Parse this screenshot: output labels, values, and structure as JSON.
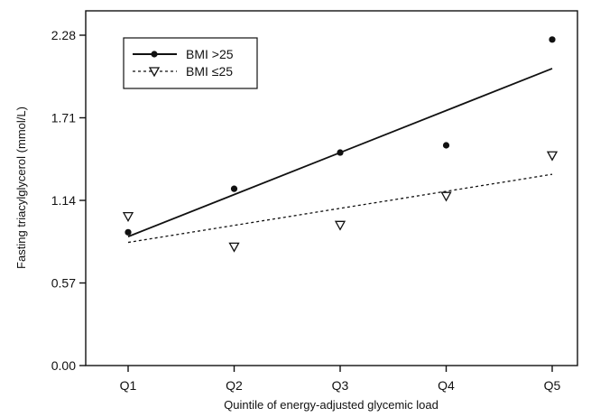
{
  "chart_data": {
    "type": "scatter",
    "categories": [
      "Q1",
      "Q2",
      "Q3",
      "Q4",
      "Q5"
    ],
    "xlabel": "Quintile of energy-adjusted glycemic load",
    "ylabel": "Fasting triacylglycerol (mmol/L)",
    "yticks": [
      "0.00",
      "0.57",
      "1.14",
      "1.71",
      "2.28"
    ],
    "ylim": [
      0,
      2.28
    ],
    "grid": false,
    "legend_position": "top-left",
    "series": [
      {
        "name": "BMI >25",
        "marker": "filled-circle",
        "line_style": "solid",
        "values": [
          0.92,
          1.22,
          1.47,
          1.52,
          2.25
        ],
        "fit_line": [
          0.89,
          2.05
        ]
      },
      {
        "name": "BMI ≤25",
        "marker": "open-triangle-down",
        "line_style": "dashed",
        "values": [
          1.03,
          0.82,
          0.97,
          1.17,
          1.45
        ],
        "fit_line": [
          0.85,
          1.32
        ]
      }
    ]
  }
}
